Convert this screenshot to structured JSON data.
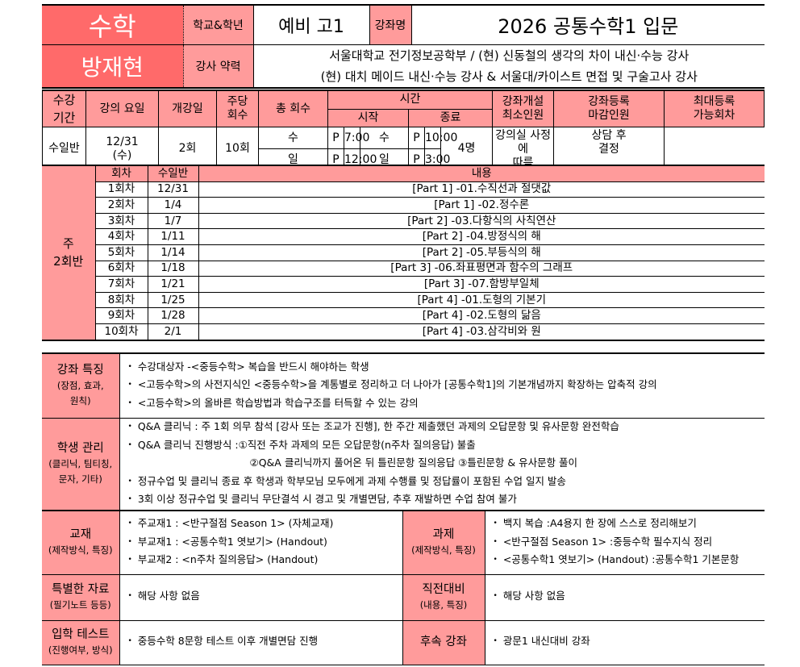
{
  "header": {
    "subject": "수학",
    "teacher": "방재현",
    "school_grade_label": "학교&학년",
    "school_grade": "예비 고1",
    "course_name_label": "강좌명",
    "course_name": "2026 공통수학1 입문",
    "career_label": "강사 약력",
    "career_lines": [
      "서울대학교 전기정보공학부 / (현) 신동철의 생각의 차이 내신·수능 강사",
      "(현) 대치 메이드 내신·수능 강사 & 서울대/카이스트 면접 및 구술고사 강사"
    ]
  },
  "schedule": {
    "period_label": "수강\n기간",
    "headers": {
      "days": "강의 요일",
      "start_date": "개강일",
      "per_week": "주당\n회수",
      "total": "총 회수",
      "time": "시간",
      "time_start": "시작",
      "time_end": "종료",
      "min_students": "강좌개설\n최소인원",
      "reg_close": "강좌등록\n마감인원",
      "max_sessions": "최대등록\n가능회차"
    },
    "values": {
      "days": "수일반",
      "start_date": "12/31\n(수)",
      "per_week": "2회",
      "total": "10회",
      "times": [
        {
          "start_day": "수",
          "start_ampm": "P",
          "start_time": "7:00",
          "end_day": "수",
          "end_ampm": "P",
          "end_time": "10:00"
        },
        {
          "start_day": "일",
          "start_ampm": "P",
          "start_time": "12:00",
          "end_day": "일",
          "end_ampm": "P",
          "end_time": "3:00"
        }
      ],
      "min_students": "4명",
      "reg_close": "강의실 사정에\n따름",
      "max_sessions": "상담 후\n결정"
    }
  },
  "lectures": {
    "group_label": "주\n2회반",
    "headers": {
      "session": "회차",
      "date": "수일반",
      "content": "내용"
    },
    "rows": [
      {
        "session": "1회차",
        "date": "12/31",
        "content": "[Part 1] -01.수직선과 절댓값"
      },
      {
        "session": "2회차",
        "date": "1/4",
        "content": "[Part 1] -02.정수론"
      },
      {
        "session": "3회차",
        "date": "1/7",
        "content": "[Part 2] -03.다항식의 사칙연산"
      },
      {
        "session": "4회차",
        "date": "1/11",
        "content": "[Part 2] -04.방정식의 해"
      },
      {
        "session": "5회차",
        "date": "1/14",
        "content": "[Part 2] -05.부등식의 해"
      },
      {
        "session": "6회차",
        "date": "1/18",
        "content": "[Part 3] -06.좌표평면과 함수의 그래프"
      },
      {
        "session": "7회차",
        "date": "1/21",
        "content": "[Part 3] -07.함방부일체"
      },
      {
        "session": "8회차",
        "date": "1/25",
        "content": "[Part 4] -01.도형의 기본기"
      },
      {
        "session": "9회차",
        "date": "1/28",
        "content": "[Part 4] -02.도형의 닮음"
      },
      {
        "session": "10회차",
        "date": "2/1",
        "content": "[Part 4] -03.삼각비와 원"
      }
    ]
  },
  "features": {
    "title": "강좌 특징",
    "subtitle": "(장점, 효과,\n원칙)",
    "items": [
      "수강대상자 -<중등수학> 복습을 반드시 해야하는 학생",
      "<고등수학>의 사전지식인 <중등수학>을 계통별로 정리하고 더 나아가 [공통수학1]의 기본개념까지 확장하는 압축적 강의",
      "<고등수학>의 올바른 학습방법과 학습구조를 터득할 수 있는 강의"
    ]
  },
  "management": {
    "title": "학생 관리",
    "subtitle": "(클리닉, 팀티칭,\n문자, 기타)",
    "items": [
      "Q&A 클리닉 : 주 1회 의무 참석 [강사 또는 조교가 진행], 한 주간 제출했던 과제의 오답문항 및 유사문항 완전학습",
      "Q&A 클리닉 진행방식 :①직전 주차 과제의 모든 오답문항(n주차 질의응답) 불출",
      "②Q&A 클리닉까지 풀어온 뒤 틀린문항 질의응답 ③틀린문항 & 유사문항 풀이",
      "정규수업 및 클리닉 종료 후 학생과 학부모님 모두에게 과제 수행률 및 정답률이 포함된 수업 일지 발송",
      "3회 이상 정규수업 및 클리닉 무단결석 시 경고 및 개별면담, 추후 재발하면 수업 참여 불가"
    ]
  },
  "textbook": {
    "title": "교재",
    "subtitle": "(제작방식, 특징)",
    "items": [
      "주교재1 : <반구절점 Season 1> (자체교재)",
      "부교재1 : <공통수학1 엿보기> (Handout)",
      "부교재2 : <n주차 질의응답> (Handout)"
    ]
  },
  "homework": {
    "title": "과제",
    "subtitle": "(제작방식, 특징)",
    "items": [
      "백지 복습 :A4용지 한 장에 스스로 정리해보기",
      "<반구절점 Season 1> :중등수학 필수지식 정리",
      "<공통수학1 엿보기> (Handout) :공통수학1 기본문항"
    ]
  },
  "special_materials": {
    "title": "특별한 자료",
    "subtitle": "(필기노트 등등)",
    "items": [
      "해당 사항 없음"
    ]
  },
  "exam_prep": {
    "title": "직전대비",
    "subtitle": "(내용, 특징)",
    "items": [
      "해당 사항 없음"
    ]
  },
  "entrance_test": {
    "title": "입학 테스트",
    "subtitle": "(진행여부, 방식)",
    "items": [
      "중등수학 8문항 테스트 이후 개별면담 진행"
    ]
  },
  "follow_up": {
    "title": "후속 강좌",
    "items": [
      "광문1 내신대비 강좌"
    ]
  },
  "colors": {
    "accent_red": "#ff6a6a",
    "label_pink": "#ff9b9b"
  }
}
